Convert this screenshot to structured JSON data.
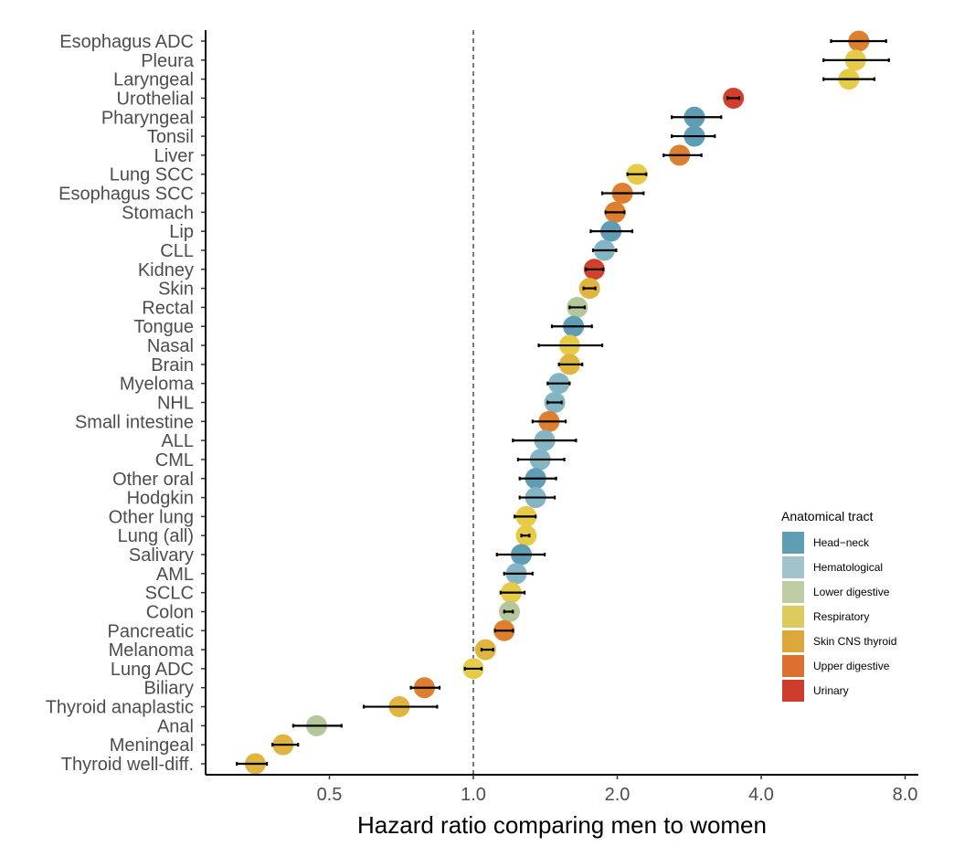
{
  "chart_data": {
    "type": "scatter",
    "subtype": "forest-plot",
    "title": "",
    "xlabel": "Hazard ratio comparing men to women",
    "ylabel": "",
    "x_scale": "log2",
    "xlim": [
      0.3,
      8.2
    ],
    "x_ticks": [
      0.5,
      1.0,
      2.0,
      4.0,
      8.0
    ],
    "x_tick_labels": [
      "0.5",
      "1.0",
      "2.0",
      "4.0",
      "8.0"
    ],
    "reference_line": 1.0,
    "grid": false,
    "legend": {
      "title": "Anatomical tract",
      "placement": "right",
      "entries": [
        {
          "name": "Head−neck",
          "key": "head-neck",
          "color": "#5f9db5"
        },
        {
          "name": "Hematological",
          "key": "hematological",
          "color": "#9fc3c8"
        },
        {
          "name": "Lower digestive",
          "key": "lower-digestive",
          "color": "#bdcca2"
        },
        {
          "name": "Respiratory",
          "key": "respiratory",
          "color": "#dccb5c"
        },
        {
          "name": "Skin CNS thyroid",
          "key": "skin-cns-thyroid",
          "color": "#dea73c"
        },
        {
          "name": "Upper digestive",
          "key": "upper-digestive",
          "color": "#dc7030"
        },
        {
          "name": "Urinary",
          "key": "urinary",
          "color": "#cc3d2c"
        }
      ]
    },
    "point_colors": {
      "head-neck": "#5f9db5",
      "hematological": "#84b5c4",
      "lower-digestive": "#b3c79a",
      "respiratory": "#e6cb48",
      "skin-cns-thyroid": "#dfb43f",
      "upper-digestive": "#dd7f2e",
      "urinary": "#d0402b"
    },
    "rows": [
      {
        "label": "Esophagus ADC",
        "tract": "upper-digestive",
        "hr": 6.4,
        "lo": 5.6,
        "hi": 7.3
      },
      {
        "label": "Pleura",
        "tract": "respiratory",
        "hr": 6.3,
        "lo": 5.4,
        "hi": 7.4
      },
      {
        "label": "Laryngeal",
        "tract": "respiratory",
        "hr": 6.1,
        "lo": 5.4,
        "hi": 6.9
      },
      {
        "label": "Urothelial",
        "tract": "urinary",
        "hr": 3.5,
        "lo": 3.4,
        "hi": 3.6
      },
      {
        "label": "Pharyngeal",
        "tract": "head-neck",
        "hr": 2.9,
        "lo": 2.6,
        "hi": 3.3
      },
      {
        "label": "Tonsil",
        "tract": "head-neck",
        "hr": 2.9,
        "lo": 2.6,
        "hi": 3.2
      },
      {
        "label": "Liver",
        "tract": "upper-digestive",
        "hr": 2.7,
        "lo": 2.5,
        "hi": 3.0
      },
      {
        "label": "Lung SCC",
        "tract": "respiratory",
        "hr": 2.2,
        "lo": 2.1,
        "hi": 2.3
      },
      {
        "label": "Esophagus SCC",
        "tract": "upper-digestive",
        "hr": 2.05,
        "lo": 1.86,
        "hi": 2.27
      },
      {
        "label": "Stomach",
        "tract": "upper-digestive",
        "hr": 1.98,
        "lo": 1.89,
        "hi": 2.07
      },
      {
        "label": "Lip",
        "tract": "head-neck",
        "hr": 1.94,
        "lo": 1.76,
        "hi": 2.15
      },
      {
        "label": "CLL",
        "tract": "hematological",
        "hr": 1.88,
        "lo": 1.78,
        "hi": 1.99
      },
      {
        "label": "Kidney",
        "tract": "urinary",
        "hr": 1.79,
        "lo": 1.72,
        "hi": 1.87
      },
      {
        "label": "Skin",
        "tract": "skin-cns-thyroid",
        "hr": 1.75,
        "lo": 1.7,
        "hi": 1.8
      },
      {
        "label": "Rectal",
        "tract": "lower-digestive",
        "hr": 1.65,
        "lo": 1.59,
        "hi": 1.71
      },
      {
        "label": "Tongue",
        "tract": "head-neck",
        "hr": 1.62,
        "lo": 1.46,
        "hi": 1.77
      },
      {
        "label": "Nasal",
        "tract": "respiratory",
        "hr": 1.59,
        "lo": 1.37,
        "hi": 1.86
      },
      {
        "label": "Brain",
        "tract": "skin-cns-thyroid",
        "hr": 1.59,
        "lo": 1.51,
        "hi": 1.69
      },
      {
        "label": "Myeloma",
        "tract": "hematological",
        "hr": 1.51,
        "lo": 1.43,
        "hi": 1.59
      },
      {
        "label": "NHL",
        "tract": "hematological",
        "hr": 1.48,
        "lo": 1.43,
        "hi": 1.53
      },
      {
        "label": "Small intestine",
        "tract": "upper-digestive",
        "hr": 1.44,
        "lo": 1.33,
        "hi": 1.56
      },
      {
        "label": "ALL",
        "tract": "hematological",
        "hr": 1.41,
        "lo": 1.21,
        "hi": 1.64
      },
      {
        "label": "CML",
        "tract": "hematological",
        "hr": 1.38,
        "lo": 1.24,
        "hi": 1.55
      },
      {
        "label": "Other oral",
        "tract": "head-neck",
        "hr": 1.35,
        "lo": 1.25,
        "hi": 1.49
      },
      {
        "label": "Hodgkin",
        "tract": "hematological",
        "hr": 1.35,
        "lo": 1.25,
        "hi": 1.48
      },
      {
        "label": "Other lung",
        "tract": "respiratory",
        "hr": 1.29,
        "lo": 1.22,
        "hi": 1.35
      },
      {
        "label": "Lung (all)",
        "tract": "respiratory",
        "hr": 1.29,
        "lo": 1.26,
        "hi": 1.31
      },
      {
        "label": "Salivary",
        "tract": "head-neck",
        "hr": 1.26,
        "lo": 1.12,
        "hi": 1.41
      },
      {
        "label": "AML",
        "tract": "hematological",
        "hr": 1.23,
        "lo": 1.16,
        "hi": 1.33
      },
      {
        "label": "SCLC",
        "tract": "respiratory",
        "hr": 1.2,
        "lo": 1.14,
        "hi": 1.28
      },
      {
        "label": "Colon",
        "tract": "lower-digestive",
        "hr": 1.19,
        "lo": 1.16,
        "hi": 1.21
      },
      {
        "label": "Pancreatic",
        "tract": "upper-digestive",
        "hr": 1.16,
        "lo": 1.11,
        "hi": 1.21
      },
      {
        "label": "Melanoma",
        "tract": "skin-cns-thyroid",
        "hr": 1.06,
        "lo": 1.04,
        "hi": 1.1
      },
      {
        "label": "Lung ADC",
        "tract": "respiratory",
        "hr": 1.0,
        "lo": 0.96,
        "hi": 1.04
      },
      {
        "label": "Biliary",
        "tract": "upper-digestive",
        "hr": 0.79,
        "lo": 0.74,
        "hi": 0.85
      },
      {
        "label": "Thyroid anaplastic",
        "tract": "skin-cns-thyroid",
        "hr": 0.7,
        "lo": 0.59,
        "hi": 0.84
      },
      {
        "label": "Anal",
        "tract": "lower-digestive",
        "hr": 0.47,
        "lo": 0.42,
        "hi": 0.53
      },
      {
        "label": "Meningeal",
        "tract": "skin-cns-thyroid",
        "hr": 0.4,
        "lo": 0.38,
        "hi": 0.43
      },
      {
        "label": "Thyroid well-diff.",
        "tract": "skin-cns-thyroid",
        "hr": 0.35,
        "lo": 0.32,
        "hi": 0.37
      }
    ]
  }
}
